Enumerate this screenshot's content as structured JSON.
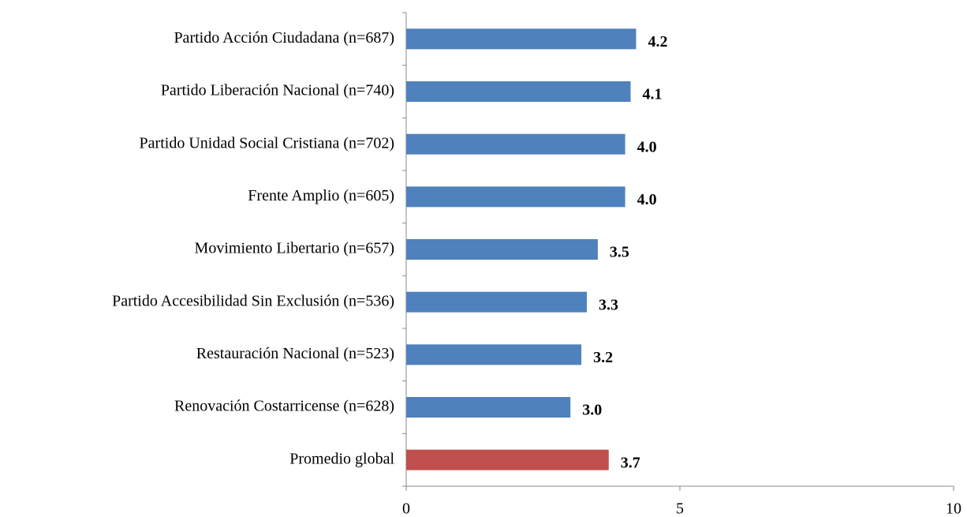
{
  "chart_data": {
    "type": "bar",
    "orientation": "horizontal",
    "categories": [
      "Partido Acción Ciudadana (n=687)",
      "Partido Liberación Nacional (n=740)",
      "Partido Unidad Social Cristiana (n=702)",
      "Frente Amplio (n=605)",
      "Movimiento Libertario (n=657)",
      "Partido Accesibilidad Sin Exclusión (n=536)",
      "Restauración Nacional (n=523)",
      "Renovación Costarricense (n=628)",
      "Promedio global"
    ],
    "values": [
      4.2,
      4.1,
      4.0,
      4.0,
      3.5,
      3.3,
      3.2,
      3.0,
      3.7
    ],
    "value_labels": [
      "4.2",
      "4.1",
      "4.0",
      "4.0",
      "3.5",
      "3.3",
      "3.2",
      "3.0",
      "3.7"
    ],
    "colors": [
      "#4f81bd",
      "#4f81bd",
      "#4f81bd",
      "#4f81bd",
      "#4f81bd",
      "#4f81bd",
      "#4f81bd",
      "#4f81bd",
      "#c0504d"
    ],
    "xlim": [
      0,
      10
    ],
    "xticks": [
      0,
      5,
      10
    ],
    "grid": false
  }
}
